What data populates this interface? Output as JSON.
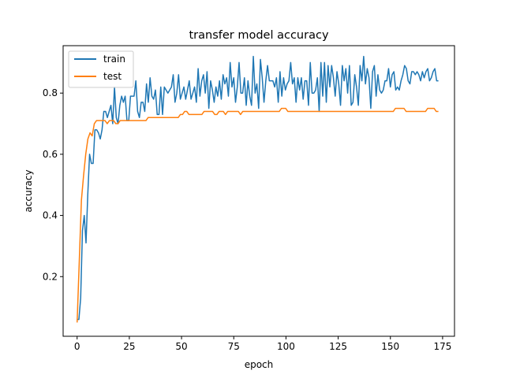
{
  "chart_data": {
    "type": "line",
    "title": "transfer model accuracy",
    "xlabel": "epoch",
    "ylabel": "accuracy",
    "xlim": [
      -6.7,
      180.7
    ],
    "ylim": [
      0.005,
      0.955
    ],
    "xticks": [
      0,
      25,
      50,
      75,
      100,
      125,
      150,
      175
    ],
    "xtick_labels": [
      "0",
      "25",
      "50",
      "75",
      "100",
      "125",
      "150",
      "175"
    ],
    "yticks": [
      0.2,
      0.4,
      0.6,
      0.8
    ],
    "ytick_labels": [
      "0.2",
      "0.4",
      "0.6",
      "0.8"
    ],
    "grid": false,
    "legend": {
      "position": "upper-left",
      "entries": [
        "train",
        "test"
      ]
    },
    "series": [
      {
        "name": "train",
        "color": "#1f77b4",
        "values": [
          0.06,
          0.06,
          0.13,
          0.35,
          0.4,
          0.31,
          0.47,
          0.6,
          0.57,
          0.57,
          0.68,
          0.68,
          0.67,
          0.65,
          0.68,
          0.74,
          0.74,
          0.72,
          0.74,
          0.76,
          0.7,
          0.82,
          0.72,
          0.7,
          0.76,
          0.79,
          0.77,
          0.79,
          0.71,
          0.71,
          0.79,
          0.79,
          0.79,
          0.84,
          0.74,
          0.72,
          0.77,
          0.77,
          0.74,
          0.83,
          0.77,
          0.85,
          0.79,
          0.78,
          0.81,
          0.73,
          0.73,
          0.82,
          0.73,
          0.82,
          0.81,
          0.8,
          0.81,
          0.82,
          0.86,
          0.77,
          0.8,
          0.86,
          0.78,
          0.8,
          0.82,
          0.78,
          0.81,
          0.84,
          0.78,
          0.8,
          0.82,
          0.77,
          0.88,
          0.79,
          0.84,
          0.86,
          0.8,
          0.87,
          0.75,
          0.84,
          0.81,
          0.77,
          0.82,
          0.79,
          0.84,
          0.78,
          0.86,
          0.83,
          0.85,
          0.79,
          0.9,
          0.82,
          0.85,
          0.77,
          0.82,
          0.9,
          0.8,
          0.8,
          0.85,
          0.76,
          0.84,
          0.79,
          0.76,
          0.92,
          0.8,
          0.83,
          0.75,
          0.91,
          0.85,
          0.77,
          0.84,
          0.89,
          0.84,
          0.84,
          0.84,
          0.82,
          0.85,
          0.77,
          0.87,
          0.79,
          0.85,
          0.81,
          0.83,
          0.84,
          0.9,
          0.83,
          0.85,
          0.77,
          0.85,
          0.81,
          0.85,
          0.78,
          0.84,
          0.84,
          0.76,
          0.9,
          0.8,
          0.8,
          0.81,
          0.85,
          0.74,
          0.9,
          0.79,
          0.9,
          0.77,
          0.89,
          0.82,
          0.89,
          0.85,
          0.79,
          0.87,
          0.83,
          0.76,
          0.89,
          0.84,
          0.88,
          0.8,
          0.89,
          0.76,
          0.77,
          0.86,
          0.82,
          0.76,
          0.89,
          0.84,
          0.92,
          0.83,
          0.88,
          0.85,
          0.75,
          0.87,
          0.89,
          0.79,
          0.86,
          0.81,
          0.8,
          0.81,
          0.84,
          0.84,
          0.88,
          0.82,
          0.86,
          0.87,
          0.81,
          0.82,
          0.81,
          0.84,
          0.86,
          0.89,
          0.88,
          0.84,
          0.83,
          0.87,
          0.87,
          0.86,
          0.87,
          0.86,
          0.84,
          0.87,
          0.85,
          0.87,
          0.88,
          0.84,
          0.85,
          0.87,
          0.88,
          0.84,
          0.84
        ],
        "x_range": [
          0,
          173
        ]
      },
      {
        "name": "test",
        "color": "#ff7f0e",
        "values": [
          0.05,
          0.25,
          0.45,
          0.53,
          0.6,
          0.65,
          0.67,
          0.66,
          0.7,
          0.71,
          0.71,
          0.71,
          0.71,
          0.71,
          0.7,
          0.71,
          0.71,
          0.71,
          0.7,
          0.7,
          0.71,
          0.71,
          0.71,
          0.71,
          0.71,
          0.71,
          0.71,
          0.71,
          0.71,
          0.71,
          0.71,
          0.71,
          0.71,
          0.72,
          0.72,
          0.72,
          0.72,
          0.72,
          0.72,
          0.72,
          0.72,
          0.72,
          0.72,
          0.72,
          0.72,
          0.72,
          0.72,
          0.72,
          0.73,
          0.73,
          0.74,
          0.74,
          0.73,
          0.73,
          0.73,
          0.73,
          0.73,
          0.73,
          0.73,
          0.74,
          0.74,
          0.74,
          0.74,
          0.74,
          0.73,
          0.73,
          0.74,
          0.74,
          0.74,
          0.73,
          0.74,
          0.74,
          0.74,
          0.74,
          0.74,
          0.74,
          0.73,
          0.74,
          0.74,
          0.74,
          0.74,
          0.74,
          0.74,
          0.74,
          0.74,
          0.74,
          0.74,
          0.74,
          0.74,
          0.74,
          0.74,
          0.74,
          0.74,
          0.74,
          0.74,
          0.75,
          0.75,
          0.75,
          0.74,
          0.74,
          0.74,
          0.74,
          0.74,
          0.74,
          0.74,
          0.74,
          0.74,
          0.74,
          0.74,
          0.74,
          0.74,
          0.74,
          0.74,
          0.74,
          0.74,
          0.74,
          0.74,
          0.74,
          0.74,
          0.74,
          0.74,
          0.74,
          0.74,
          0.74,
          0.74,
          0.74,
          0.74,
          0.74,
          0.74,
          0.74,
          0.74,
          0.74,
          0.74,
          0.74,
          0.74,
          0.74,
          0.74,
          0.74,
          0.74,
          0.74,
          0.74,
          0.74,
          0.74,
          0.74,
          0.74,
          0.74,
          0.74,
          0.74,
          0.75,
          0.75,
          0.75,
          0.75,
          0.75,
          0.74,
          0.74,
          0.74,
          0.74,
          0.74,
          0.74,
          0.74,
          0.74,
          0.74,
          0.74,
          0.75,
          0.75,
          0.75,
          0.75,
          0.74,
          0.74
        ],
        "x_range": [
          0,
          173
        ]
      }
    ]
  }
}
